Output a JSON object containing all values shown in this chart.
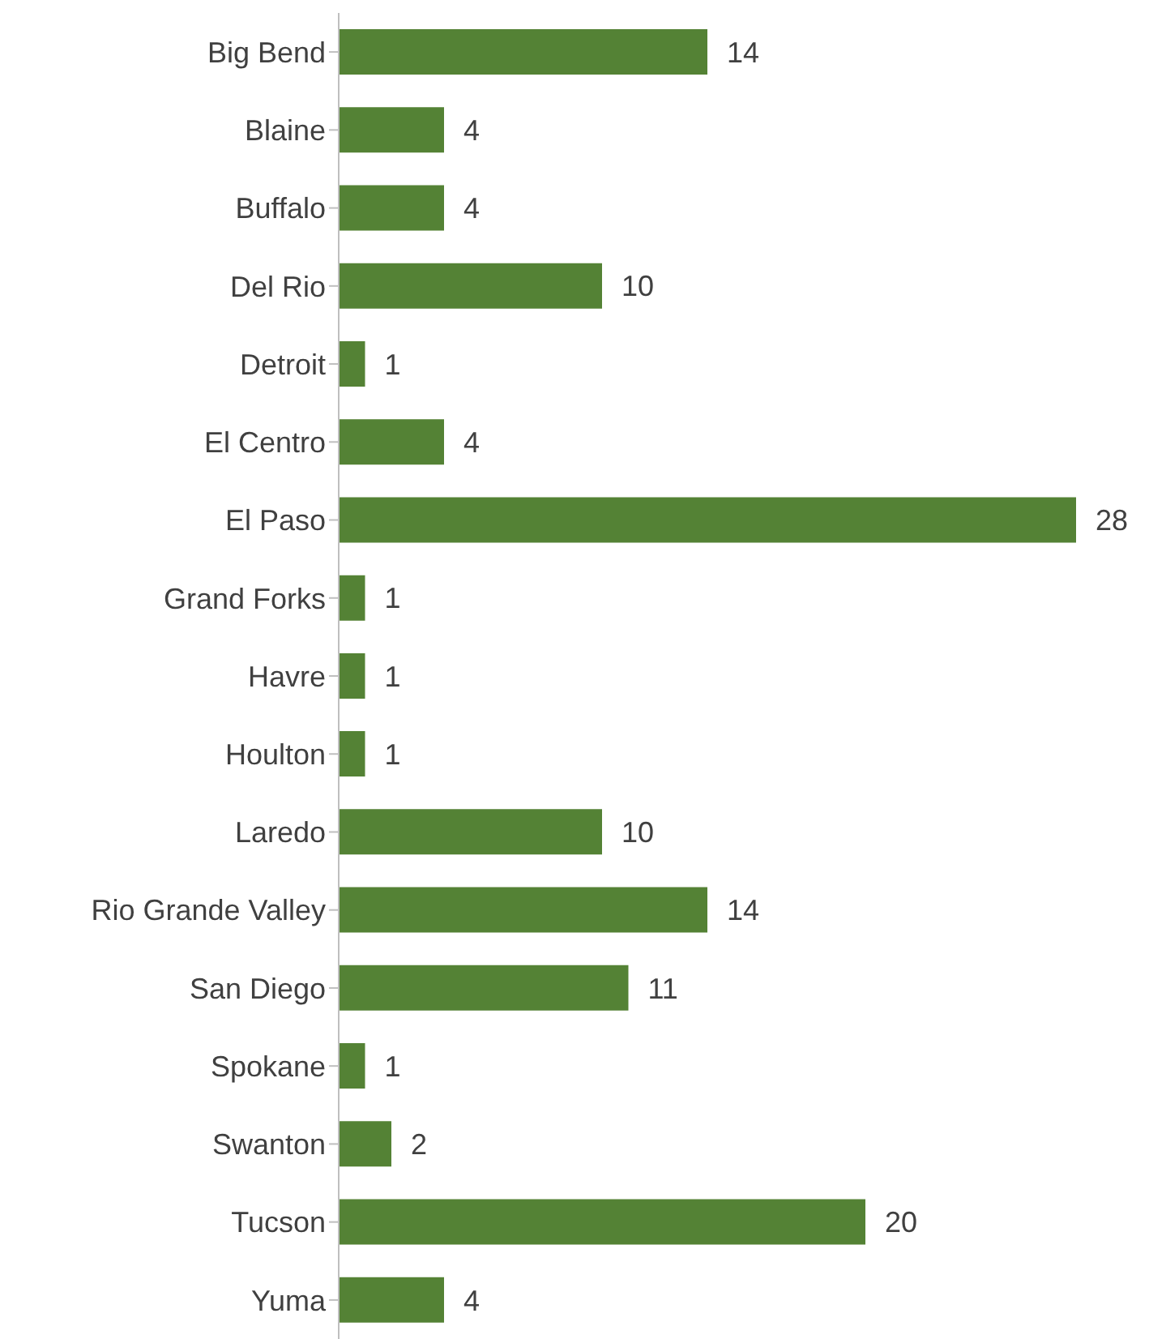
{
  "chart_data": {
    "type": "bar",
    "orientation": "horizontal",
    "categories": [
      "Big Bend",
      "Blaine",
      "Buffalo",
      "Del Rio",
      "Detroit",
      "El Centro",
      "El Paso",
      "Grand Forks",
      "Havre",
      "Houlton",
      "Laredo",
      "Rio Grande Valley",
      "San Diego",
      "Spokane",
      "Swanton",
      "Tucson",
      "Yuma"
    ],
    "values": [
      14,
      4,
      4,
      10,
      1,
      4,
      28,
      1,
      1,
      1,
      10,
      14,
      11,
      1,
      2,
      20,
      4
    ],
    "color": "#548235",
    "data_labels": true,
    "grid": false,
    "legend": false
  }
}
